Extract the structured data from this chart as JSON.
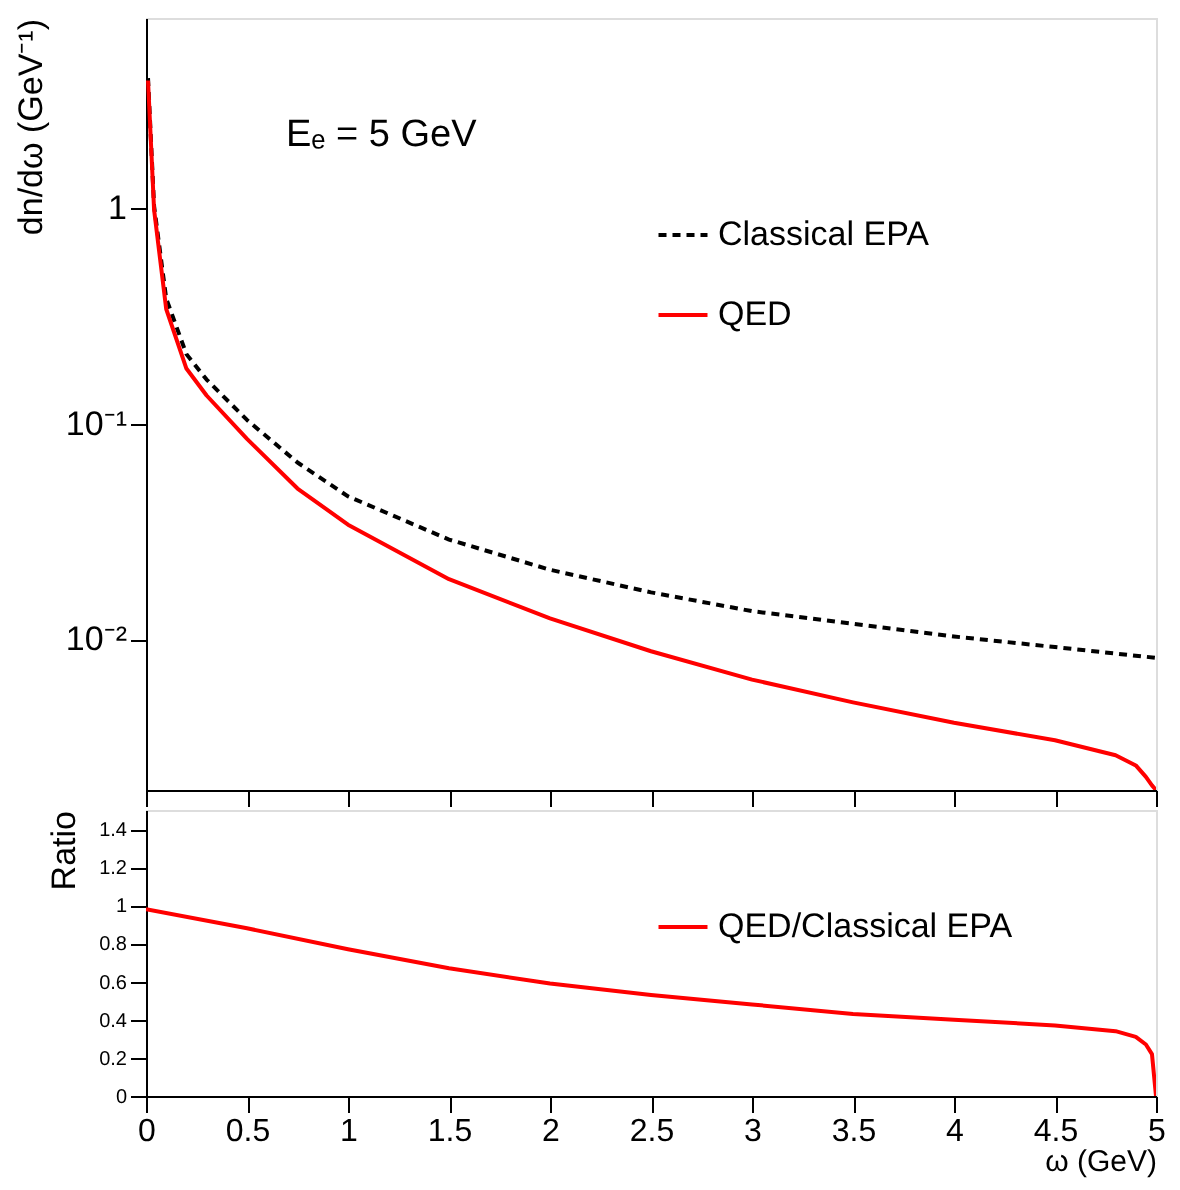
{
  "chart_data": [
    {
      "type": "line",
      "ylabel": "dn/dω (GeV⁻¹)",
      "log": "y",
      "xlim": [
        0,
        5
      ],
      "xticks": [
        0,
        0.5,
        1,
        1.5,
        2,
        2.5,
        3,
        3.5,
        4,
        4.5,
        5
      ],
      "ylim": [
        0.002,
        7.6
      ],
      "yticks": [
        {
          "value": 0.01,
          "label": "10⁻²"
        },
        {
          "value": 0.1,
          "label": "10⁻¹"
        },
        1
      ],
      "tick_labels": "y",
      "grid": false,
      "legend": "top right",
      "annotations": [
        "Eₑ = 5 GeV"
      ],
      "series": [
        {
          "name": "Classical EPA",
          "color": "#000000",
          "line_style": "dashed",
          "x": [
            0.01,
            0.04,
            0.1,
            0.2,
            0.3,
            0.5,
            0.75,
            1,
            1.5,
            2,
            2.5,
            3,
            3.5,
            4,
            4.5,
            5
          ],
          "values": [
            4.0,
            1.02,
            0.38,
            0.21,
            0.16,
            0.104,
            0.066,
            0.046,
            0.029,
            0.021,
            0.0165,
            0.0135,
            0.0118,
            0.0103,
            0.0092,
            0.0082
          ]
        },
        {
          "name": "QED",
          "color": "#ff0000",
          "line_style": "solid",
          "x": [
            0.01,
            0.04,
            0.1,
            0.2,
            0.3,
            0.5,
            0.75,
            1,
            1.5,
            2,
            2.5,
            3,
            3.5,
            4,
            4.5,
            4.8,
            4.9,
            4.95,
            4.98,
            5
          ],
          "values": [
            3.9,
            0.98,
            0.34,
            0.18,
            0.135,
            0.085,
            0.05,
            0.034,
            0.019,
            0.0125,
            0.0088,
            0.0065,
            0.0051,
            0.0041,
            0.0034,
            0.0029,
            0.0026,
            0.0023,
            0.0021,
            0.002
          ]
        }
      ]
    },
    {
      "type": "line",
      "xlabel": "ω (GeV)",
      "ylabel": "Ratio",
      "xlim": [
        0,
        5
      ],
      "xticks": [
        0,
        0.5,
        1,
        1.5,
        2,
        2.5,
        3,
        3.5,
        4,
        4.5,
        5
      ],
      "ylim": [
        0,
        1.5
      ],
      "yticks": [
        0,
        0.2,
        0.4,
        0.6,
        0.8,
        1,
        1.2,
        1.4
      ],
      "grid": false,
      "legend": "right",
      "series": [
        {
          "name": "QED/Classical EPA",
          "color": "#ff0000",
          "line_style": "solid",
          "x": [
            0,
            0.5,
            1,
            1.5,
            2,
            2.5,
            3,
            3.5,
            4,
            4.5,
            4.8,
            4.9,
            4.95,
            4.98,
            5
          ],
          "values": [
            0.98,
            0.88,
            0.77,
            0.67,
            0.59,
            0.53,
            0.48,
            0.43,
            0.4,
            0.37,
            0.34,
            0.31,
            0.27,
            0.22,
            0
          ]
        }
      ]
    }
  ]
}
